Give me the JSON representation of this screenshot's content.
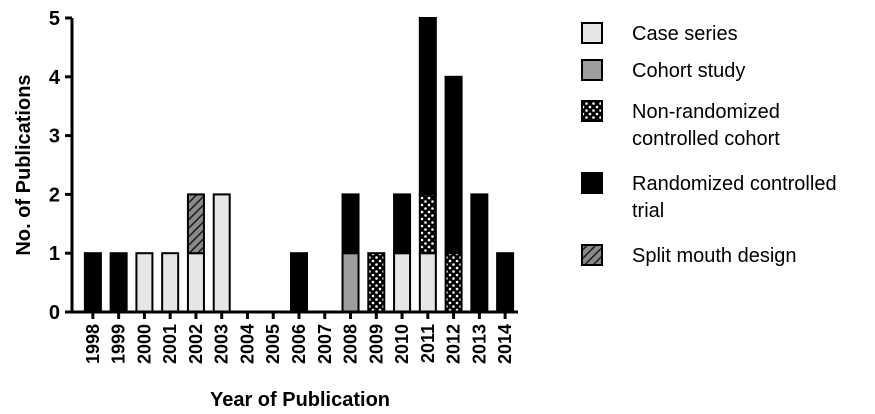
{
  "chart_data": {
    "type": "bar",
    "stacked": true,
    "xlabel": "Year of Publication",
    "ylabel": "No. of Publications",
    "ylim": [
      0,
      5
    ],
    "yticks": [
      0,
      1,
      2,
      3,
      4,
      5
    ],
    "categories": [
      "1998",
      "1999",
      "2000",
      "2001",
      "2002",
      "2003",
      "2004",
      "2005",
      "2006",
      "2007",
      "2008",
      "2009",
      "2010",
      "2011",
      "2012",
      "2013",
      "2014"
    ],
    "series": [
      {
        "name": "Case series",
        "style": "light",
        "fill": "#e6e6e6",
        "values": [
          0,
          0,
          1,
          1,
          1,
          2,
          0,
          0,
          0,
          0,
          0,
          0,
          1,
          1,
          0,
          0,
          0
        ]
      },
      {
        "name": "Cohort study",
        "style": "gray",
        "fill": "#9e9e9e",
        "values": [
          0,
          0,
          0,
          0,
          0,
          0,
          0,
          0,
          0,
          0,
          1,
          0,
          0,
          0,
          0,
          0,
          0
        ]
      },
      {
        "name": "Randomized controlled trial",
        "style": "black",
        "fill": "#000000",
        "values": [
          1,
          1,
          0,
          0,
          0,
          0,
          0,
          0,
          1,
          0,
          1,
          0,
          1,
          3,
          3,
          2,
          1
        ]
      },
      {
        "name": "Split mouth design",
        "style": "hatch",
        "fill": "#6e6e6e",
        "values": [
          0,
          0,
          0,
          0,
          1,
          0,
          0,
          0,
          0,
          0,
          0,
          0,
          0,
          0,
          0,
          0,
          0
        ]
      },
      {
        "name": "Non-randomized controlled cohort",
        "style": "dots",
        "fill": "#000000",
        "values": [
          0,
          0,
          0,
          0,
          0,
          0,
          0,
          0,
          0,
          0,
          0,
          1,
          0,
          1,
          1,
          0,
          0
        ]
      }
    ],
    "stack_order": [
      "Case series",
      "Cohort study",
      "Split mouth design",
      "Non-randomized controlled cohort",
      "Randomized controlled trial"
    ],
    "legend": {
      "placement": "right",
      "entries": [
        {
          "series": "Case series",
          "lines": [
            "Case series"
          ]
        },
        {
          "series": "Cohort study",
          "lines": [
            "Cohort study"
          ]
        },
        {
          "series": "Non-randomized controlled cohort",
          "lines": [
            "Non-randomized",
            "controlled cohort"
          ]
        },
        {
          "series": "Randomized controlled trial",
          "lines": [
            "Randomized controlled",
            "trial"
          ]
        },
        {
          "series": "Split mouth design",
          "lines": [
            "Split mouth design"
          ]
        }
      ]
    }
  }
}
